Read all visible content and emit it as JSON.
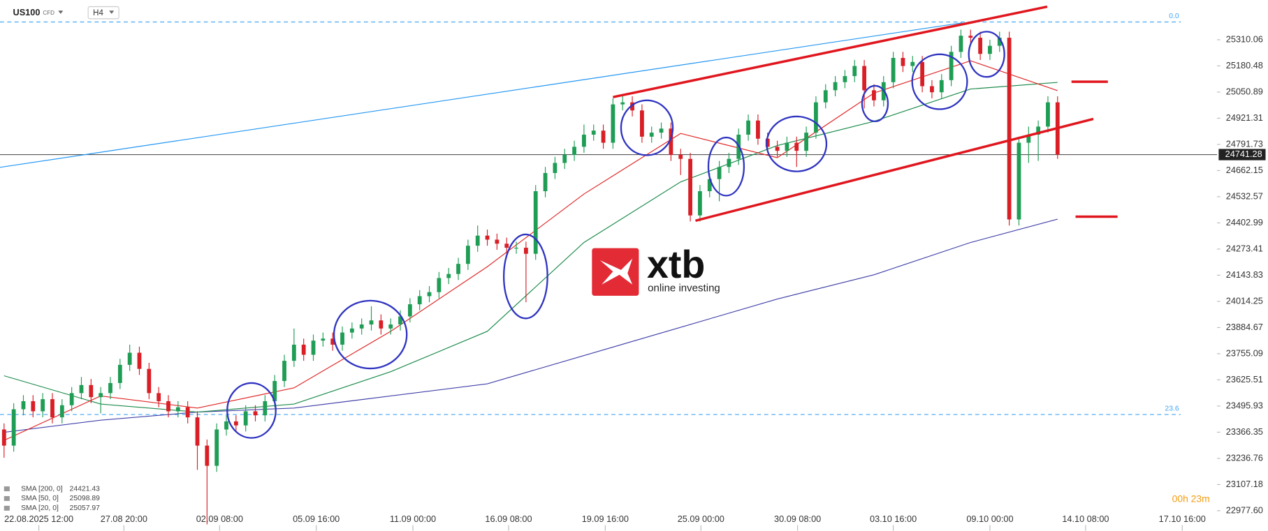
{
  "header": {
    "symbol": "US100",
    "instrument": "CFD",
    "timeframe": "H4"
  },
  "watermark": {
    "brand": "xtb",
    "tagline": "online investing"
  },
  "countdown": "00h 23m",
  "chart_data": {
    "type": "candlestick",
    "up_color": "#1f9d55",
    "down_color": "#d91e26",
    "open": [
      23380,
      23300,
      23480,
      23520,
      23470,
      23530,
      23440,
      23500,
      23560,
      23600,
      23540,
      23560,
      23610,
      23700,
      23760,
      23680,
      23560,
      23520,
      23470,
      23490,
      23440,
      23300,
      23200,
      23380,
      23420,
      23400,
      23470,
      23450,
      23520,
      23620,
      23720,
      23800,
      23750,
      23820,
      23830,
      23800,
      23860,
      23880,
      23900,
      23920,
      23880,
      23900,
      23940,
      24000,
      24040,
      24060,
      24130,
      24150,
      24200,
      24290,
      24340,
      24320,
      24300,
      24280,
      24280,
      24250,
      24560,
      24650,
      24700,
      24740,
      24780,
      24840,
      24860,
      24800,
      24990,
      25000,
      24960,
      24830,
      24850,
      24870,
      24740,
      24720,
      24440,
      24560,
      24620,
      24680,
      24720,
      24840,
      24910,
      24820,
      24780,
      24760,
      24800,
      24760,
      24850,
      25000,
      25060,
      25100,
      25130,
      25180,
      25060,
      25010,
      25100,
      25220,
      25180,
      25200,
      25080,
      25050,
      25110,
      25250,
      25330,
      25320,
      25240,
      25280,
      25320,
      24420,
      24800,
      24840,
      24880,
      25000
    ],
    "high": [
      23410,
      23510,
      23550,
      23550,
      23560,
      23560,
      23530,
      23590,
      23640,
      23630,
      23590,
      23640,
      23730,
      23800,
      23790,
      23710,
      23590,
      23550,
      23520,
      23520,
      23470,
      23330,
      23410,
      23450,
      23450,
      23500,
      23500,
      23550,
      23650,
      23750,
      23880,
      23830,
      23850,
      23860,
      23860,
      23890,
      23910,
      23930,
      23990,
      23950,
      23930,
      23970,
      24030,
      24070,
      24090,
      24160,
      24180,
      24230,
      24320,
      24390,
      24370,
      24350,
      24330,
      24310,
      24310,
      24590,
      24680,
      24730,
      24770,
      24810,
      24890,
      24890,
      24890,
      25020,
      25030,
      25030,
      24990,
      24880,
      24900,
      24900,
      24770,
      24750,
      24590,
      24650,
      24710,
      24750,
      24870,
      24940,
      24940,
      24850,
      24810,
      24830,
      24830,
      24880,
      25030,
      25090,
      25130,
      25160,
      25210,
      25210,
      25090,
      25130,
      25250,
      25250,
      25230,
      25230,
      25110,
      25140,
      25280,
      25360,
      25360,
      25350,
      25310,
      25350,
      25350,
      24830,
      24880,
      24910,
      25030,
      25030
    ],
    "low": [
      23240,
      23270,
      23450,
      23440,
      23440,
      23410,
      23410,
      23470,
      23530,
      23510,
      23460,
      23530,
      23580,
      23670,
      23650,
      23530,
      23490,
      23440,
      23440,
      23410,
      23180,
      22910,
      23170,
      23350,
      23370,
      23370,
      23420,
      23420,
      23490,
      23590,
      23690,
      23720,
      23720,
      23790,
      23770,
      23770,
      23830,
      23850,
      23870,
      23850,
      23850,
      23870,
      23910,
      23970,
      24010,
      24030,
      24100,
      24120,
      24170,
      24260,
      24290,
      24270,
      24250,
      24250,
      24010,
      24220,
      24530,
      24620,
      24670,
      24710,
      24750,
      24810,
      24770,
      24770,
      24960,
      24930,
      24800,
      24800,
      24820,
      24710,
      24640,
      24410,
      24410,
      24530,
      24510,
      24650,
      24690,
      24810,
      24790,
      24750,
      24730,
      24730,
      24680,
      24730,
      24820,
      24970,
      25030,
      25070,
      25100,
      24970,
      24980,
      24980,
      25070,
      25150,
      25150,
      25050,
      25020,
      25020,
      25080,
      25220,
      25290,
      25210,
      25210,
      25250,
      24390,
      24390,
      24700,
      24710,
      24850,
      24720
    ],
    "close": [
      23300,
      23480,
      23520,
      23470,
      23530,
      23440,
      23500,
      23560,
      23600,
      23540,
      23560,
      23610,
      23700,
      23760,
      23680,
      23560,
      23520,
      23470,
      23490,
      23440,
      23300,
      23200,
      23380,
      23420,
      23400,
      23470,
      23450,
      23520,
      23620,
      23720,
      23800,
      23750,
      23820,
      23830,
      23800,
      23860,
      23880,
      23900,
      23920,
      23880,
      23900,
      23940,
      24000,
      24040,
      24060,
      24130,
      24150,
      24200,
      24290,
      24340,
      24320,
      24300,
      24280,
      24280,
      24250,
      24560,
      24650,
      24700,
      24740,
      24780,
      24840,
      24860,
      24800,
      24990,
      25000,
      24960,
      24830,
      24850,
      24870,
      24740,
      24720,
      24440,
      24560,
      24620,
      24680,
      24720,
      24840,
      24910,
      24820,
      24780,
      24760,
      24800,
      24760,
      24850,
      25000,
      25060,
      25100,
      25130,
      25180,
      25060,
      25010,
      25100,
      25220,
      25180,
      25200,
      25080,
      25050,
      25110,
      25250,
      25330,
      25320,
      25240,
      25280,
      25320,
      24420,
      24800,
      24840,
      24880,
      25000,
      24741.28
    ],
    "series": [
      {
        "name": "SMA [200, 0]",
        "color": "#4040a8",
        "x": [
          0,
          10,
          20,
          30,
          40,
          50,
          60,
          70,
          80,
          90,
          100,
          109
        ],
        "values": [
          23366,
          23426,
          23466,
          23486,
          23546,
          23606,
          23746,
          23886,
          24026,
          24146,
          24306,
          24421.43
        ]
      },
      {
        "name": "SMA [50, 0]",
        "color": "#1b8a4a",
        "x": [
          0,
          10,
          20,
          30,
          40,
          50,
          60,
          70,
          80,
          90,
          100,
          109
        ],
        "values": [
          23646,
          23506,
          23466,
          23506,
          23666,
          23866,
          24306,
          24606,
          24786,
          24906,
          25066,
          25098.89
        ]
      },
      {
        "name": "SMA [20, 0]",
        "color": "#e02424",
        "x": [
          0,
          10,
          20,
          30,
          40,
          50,
          60,
          70,
          80,
          90,
          100,
          109
        ],
        "values": [
          23326,
          23546,
          23486,
          23586,
          23866,
          24186,
          24546,
          24846,
          24726,
          25046,
          25206,
          25057.97
        ]
      }
    ],
    "last_price": 24741.28,
    "fib_levels": [
      {
        "level": "0.0",
        "price": 25398
      },
      {
        "level": "23.6",
        "price": 23454
      }
    ],
    "xlim": [
      -0.42,
      125.5
    ],
    "xticks": [
      {
        "value": 3.6,
        "label": "22.08.2025 12:00"
      },
      {
        "value": 12.4,
        "label": "27.08 20:00"
      },
      {
        "value": 22.3,
        "label": "02.09 08:00"
      },
      {
        "value": 32.3,
        "label": "05.09 16:00"
      },
      {
        "value": 42.3,
        "label": "11.09 00:00"
      },
      {
        "value": 52.2,
        "label": "16.09 08:00"
      },
      {
        "value": 62.2,
        "label": "19.09 16:00"
      },
      {
        "value": 72.1,
        "label": "25.09 00:00"
      },
      {
        "value": 82.1,
        "label": "30.09 08:00"
      },
      {
        "value": 92,
        "label": "03.10 16:00"
      },
      {
        "value": 102,
        "label": "09.10 00:00"
      },
      {
        "value": 111.9,
        "label": "14.10 08:00"
      },
      {
        "value": 121.9,
        "label": "17.10 16:00"
      }
    ],
    "ylim": [
      22878,
      25506
    ],
    "yticks": [
      {
        "value": 22977.6,
        "label": "22977.60"
      },
      23107.18,
      23236.76,
      23366.35,
      23495.93,
      23625.51,
      23755.09,
      23884.67,
      24014.25,
      24143.83,
      24273.41,
      24402.99,
      24532.57,
      24662.15,
      24791.73,
      24921.31,
      25050.89,
      25180.48,
      25310.06
    ]
  }
}
